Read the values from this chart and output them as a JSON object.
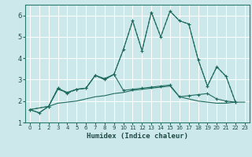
{
  "xlabel": "Humidex (Indice chaleur)",
  "xlim": [
    -0.5,
    23.5
  ],
  "ylim": [
    1,
    6.5
  ],
  "yticks": [
    1,
    2,
    3,
    4,
    5,
    6
  ],
  "xticks": [
    0,
    1,
    2,
    3,
    4,
    5,
    6,
    7,
    8,
    9,
    10,
    11,
    12,
    13,
    14,
    15,
    16,
    17,
    18,
    19,
    20,
    21,
    22,
    23
  ],
  "bg_color": "#cde8ea",
  "grid_color": "#ffffff",
  "line_color": "#1e6b5e",
  "line1_x": [
    0,
    2,
    3,
    4,
    5,
    6,
    7,
    8,
    9,
    10,
    11,
    12,
    13,
    14,
    15,
    16,
    17,
    18,
    19,
    20,
    21,
    22
  ],
  "line1_y": [
    1.6,
    1.75,
    2.6,
    2.35,
    2.55,
    2.6,
    3.2,
    3.0,
    3.25,
    4.4,
    5.75,
    4.35,
    6.15,
    5.0,
    6.2,
    5.75,
    5.6,
    3.95,
    2.7,
    3.6,
    3.15,
    1.95
  ],
  "line2_x": [
    0,
    2,
    3,
    4,
    5,
    6,
    7,
    8,
    9,
    10,
    11,
    12,
    13,
    14,
    15,
    16,
    17,
    18,
    19,
    20,
    21,
    22
  ],
  "line2_y": [
    1.6,
    1.75,
    2.55,
    2.4,
    2.55,
    2.6,
    3.2,
    3.0,
    3.25,
    4.4,
    5.75,
    4.35,
    6.15,
    5.0,
    6.2,
    5.75,
    5.6,
    3.95,
    2.7,
    3.6,
    3.15,
    1.95
  ],
  "line3_x": [
    0,
    1,
    2,
    3,
    4,
    5,
    6,
    7,
    8,
    9,
    10,
    11,
    12,
    13,
    14,
    15,
    16,
    17,
    18,
    19,
    20,
    21,
    22
  ],
  "line3_y": [
    1.6,
    1.45,
    1.75,
    2.6,
    2.4,
    2.55,
    2.6,
    3.2,
    3.05,
    3.25,
    2.5,
    2.55,
    2.6,
    2.65,
    2.7,
    2.75,
    2.2,
    2.25,
    2.3,
    2.35,
    2.1,
    2.0,
    1.95
  ],
  "line4_x": [
    0,
    1,
    2,
    3,
    4,
    5,
    6,
    7,
    8,
    9,
    10,
    11,
    12,
    13,
    14,
    15,
    16,
    17,
    18,
    19,
    20,
    21,
    22,
    23
  ],
  "line4_y": [
    1.6,
    1.45,
    1.75,
    1.9,
    1.95,
    2.0,
    2.1,
    2.2,
    2.25,
    2.35,
    2.4,
    2.5,
    2.55,
    2.6,
    2.65,
    2.7,
    2.2,
    2.1,
    2.0,
    1.95,
    1.9,
    1.9,
    1.95,
    1.95
  ]
}
